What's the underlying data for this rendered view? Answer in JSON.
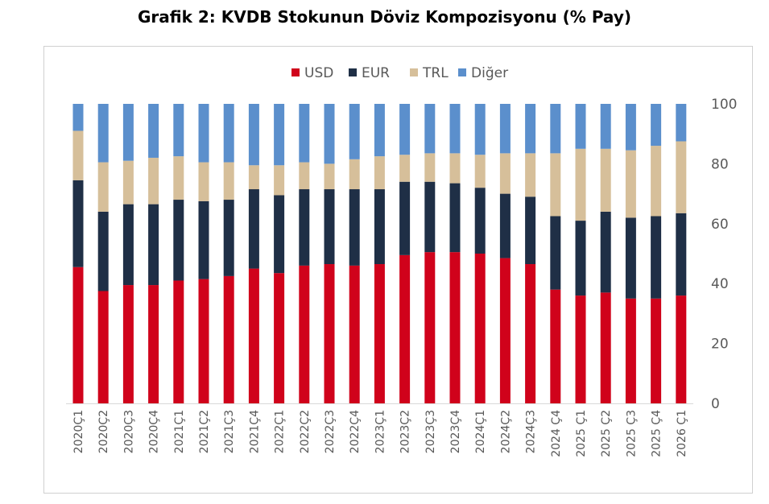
{
  "title": "Grafik 2: KVDB Stokunun Döviz Kompozisyonu (% Pay)",
  "chart_data": {
    "type": "bar",
    "stacked": true,
    "categories": [
      "2020Ç1",
      "2020Ç2",
      "2020Ç3",
      "2020Ç4",
      "2021Ç1",
      "2021Ç2",
      "2021Ç3",
      "2021Ç4",
      "2022Ç1",
      "2022Ç2",
      "2022Ç3",
      "2022Ç4",
      "2023Ç1",
      "2023Ç2",
      "2023Ç3",
      "2023Ç4",
      "2024Ç1",
      "2024Ç2",
      "2024Ç3",
      "2024 Ç4",
      "2025 Ç1",
      "2025 Ç2",
      "2025 Ç3",
      "2025 Ç4",
      "2026 Ç1"
    ],
    "series": [
      {
        "name": "USD",
        "color": "#d0021b",
        "values": [
          45.5,
          37.5,
          39.5,
          39.5,
          41,
          41.5,
          42.5,
          45,
          43.5,
          46,
          46.5,
          46,
          46.5,
          49.5,
          50.5,
          50.5,
          50,
          48.5,
          46.5,
          38,
          36,
          37,
          35,
          35,
          36
        ]
      },
      {
        "name": "EUR",
        "color": "#1f2f46",
        "values": [
          29,
          26.5,
          27,
          27,
          27,
          26,
          25.5,
          26.5,
          26,
          25.5,
          25,
          25.5,
          25,
          24.5,
          23.5,
          23,
          22,
          21.5,
          22.5,
          24.5,
          25,
          27,
          27,
          27.5,
          27.5
        ]
      },
      {
        "name": "TRL",
        "color": "#d6bf9a",
        "values": [
          16.5,
          16.5,
          14.5,
          15.5,
          14.5,
          13,
          12.5,
          8,
          10,
          9,
          8.5,
          10,
          11,
          9,
          9.5,
          10,
          11,
          13.5,
          14.5,
          21,
          24,
          21,
          22.5,
          23.5,
          24
        ]
      },
      {
        "name": "Diğer",
        "color": "#5b8fcc",
        "values": [
          9,
          19.5,
          19,
          18,
          17.5,
          19.5,
          19.5,
          20.5,
          20.5,
          19.5,
          20,
          18.5,
          17.5,
          17,
          16.5,
          16.5,
          17,
          16.5,
          16.5,
          16.5,
          15,
          15,
          15.5,
          14,
          12.5
        ]
      }
    ],
    "yticks": [
      0,
      20,
      40,
      60,
      80,
      100
    ],
    "ylim": [
      0,
      100
    ],
    "legend_position": "top-center",
    "grid": false
  }
}
